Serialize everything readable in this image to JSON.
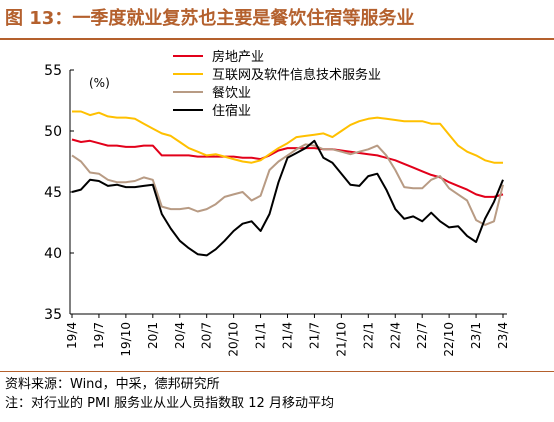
{
  "title": "图 13：一季度就业复苏也主要是餐饮住宿等服务业",
  "footer": {
    "source": "资料来源：Wind，中采，德邦研究所",
    "note": "注：对行业的 PMI 服务业从业人员指数取 12 月移动平均"
  },
  "chart_data": {
    "type": "line",
    "unit_label": "(%)",
    "ylim": [
      35,
      55
    ],
    "yticks": [
      35,
      40,
      45,
      50,
      55
    ],
    "grid": false,
    "legend_position": "top-center",
    "xtick_labels": [
      "19/4",
      "19/7",
      "19/10",
      "20/1",
      "20/4",
      "20/7",
      "20/10",
      "21/1",
      "21/4",
      "21/7",
      "21/10",
      "22/1",
      "22/4",
      "22/7",
      "22/10",
      "23/1",
      "23/4"
    ],
    "x": [
      "19/4",
      "19/5",
      "19/6",
      "19/7",
      "19/8",
      "19/9",
      "19/10",
      "19/11",
      "19/12",
      "20/1",
      "20/2",
      "20/3",
      "20/4",
      "20/5",
      "20/6",
      "20/7",
      "20/8",
      "20/9",
      "20/10",
      "20/11",
      "20/12",
      "21/1",
      "21/2",
      "21/3",
      "21/4",
      "21/5",
      "21/6",
      "21/7",
      "21/8",
      "21/9",
      "21/10",
      "21/11",
      "21/12",
      "22/1",
      "22/2",
      "22/3",
      "22/4",
      "22/5",
      "22/6",
      "22/7",
      "22/8",
      "22/9",
      "22/10",
      "22/11",
      "22/12",
      "23/1",
      "23/2",
      "23/3",
      "23/4"
    ],
    "series": [
      {
        "name": "房地产业",
        "color": "#e2001a",
        "values": [
          49.3,
          49.1,
          49.2,
          49.0,
          48.8,
          48.8,
          48.7,
          48.7,
          48.8,
          48.8,
          48.0,
          48.0,
          48.0,
          48.0,
          47.9,
          47.9,
          47.9,
          47.9,
          47.9,
          47.8,
          47.8,
          47.7,
          48.0,
          48.4,
          48.6,
          48.6,
          48.6,
          48.6,
          48.5,
          48.5,
          48.4,
          48.3,
          48.2,
          48.1,
          48.0,
          47.8,
          47.6,
          47.3,
          47.0,
          46.7,
          46.4,
          46.2,
          45.8,
          45.5,
          45.2,
          44.8,
          44.6,
          44.6,
          44.8
        ]
      },
      {
        "name": "互联网及软件信息技术服务业",
        "color": "#ffc000",
        "values": [
          51.6,
          51.6,
          51.3,
          51.5,
          51.2,
          51.1,
          51.1,
          51.0,
          50.6,
          50.2,
          49.8,
          49.6,
          49.1,
          48.6,
          48.3,
          48.0,
          48.1,
          47.9,
          47.7,
          47.5,
          47.4,
          47.6,
          48.1,
          48.6,
          49.0,
          49.5,
          49.6,
          49.7,
          49.8,
          49.5,
          50.0,
          50.5,
          50.8,
          51.0,
          51.1,
          51.0,
          50.9,
          50.8,
          50.8,
          50.8,
          50.6,
          50.6,
          49.7,
          48.8,
          48.3,
          48.0,
          47.6,
          47.4,
          47.4
        ]
      },
      {
        "name": "餐饮业",
        "color": "#b89b84",
        "values": [
          48.0,
          47.5,
          46.6,
          46.5,
          46.0,
          45.8,
          45.8,
          45.9,
          46.2,
          46.0,
          43.8,
          43.6,
          43.6,
          43.7,
          43.4,
          43.6,
          44.0,
          44.6,
          44.8,
          45.0,
          44.3,
          44.7,
          46.8,
          47.5,
          48.0,
          48.5,
          48.9,
          48.8,
          48.5,
          48.5,
          48.3,
          48.1,
          48.3,
          48.5,
          48.8,
          48.0,
          46.8,
          45.4,
          45.3,
          45.3,
          46.0,
          46.3,
          45.3,
          44.8,
          44.3,
          42.7,
          42.3,
          42.6,
          45.6
        ]
      },
      {
        "name": "住宿业",
        "color": "#000000",
        "values": [
          45.0,
          45.2,
          46.0,
          45.9,
          45.5,
          45.6,
          45.4,
          45.4,
          45.5,
          45.6,
          43.2,
          42.0,
          41.0,
          40.4,
          39.9,
          39.8,
          40.3,
          41.0,
          41.8,
          42.4,
          42.6,
          41.8,
          43.2,
          45.8,
          47.8,
          48.2,
          48.6,
          49.2,
          47.8,
          47.4,
          46.5,
          45.6,
          45.5,
          46.3,
          46.5,
          45.2,
          43.6,
          42.8,
          43.0,
          42.6,
          43.3,
          42.6,
          42.1,
          42.2,
          41.4,
          40.9,
          42.8,
          44.2,
          46.0
        ]
      }
    ]
  }
}
